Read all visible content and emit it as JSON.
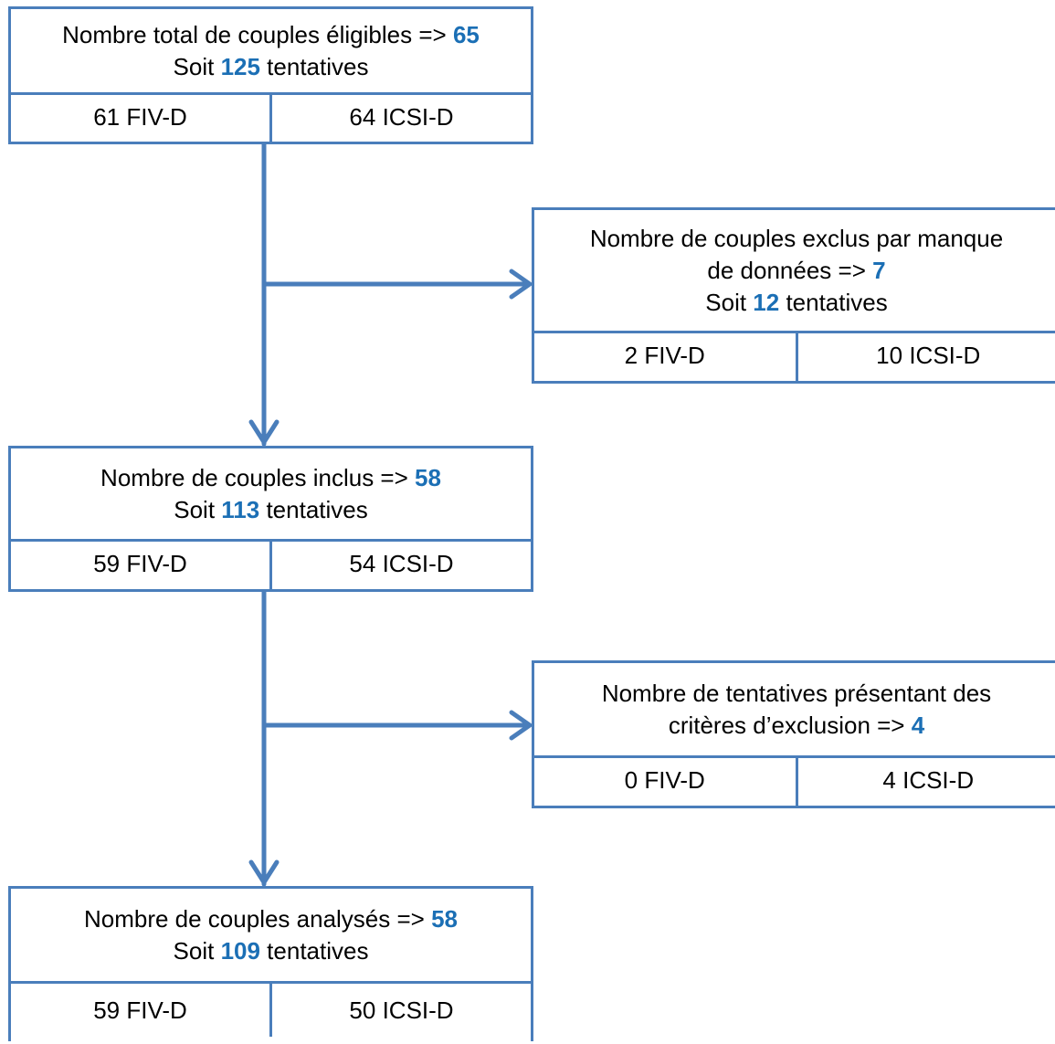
{
  "steps": [
    {
      "line1_prefix": "Nombre total de couples éligibles => ",
      "line1_value": "65",
      "line2_prefix": "Soit ",
      "line2_value": "125",
      "line2_suffix": " tentatives",
      "left": "61 FIV-D",
      "right": "64 ICSI-D"
    },
    {
      "line1_prefix": "Nombre de couples exclus par manque",
      "line2_prefix": "de données => ",
      "line2_value": "7",
      "line3_prefix": "Soit ",
      "line3_value": "12",
      "line3_suffix": " tentatives",
      "left": "2 FIV-D",
      "right": "10 ICSI-D"
    },
    {
      "line1_prefix": "Nombre de couples inclus => ",
      "line1_value": "58",
      "line2_prefix": "Soit ",
      "line2_value": "113",
      "line2_suffix": " tentatives",
      "left": "59 FIV-D",
      "right": "54 ICSI-D"
    },
    {
      "line1_prefix": "Nombre de tentatives présentant des",
      "line2_prefix": "critères d’exclusion => ",
      "line2_value": "4",
      "left": "0 FIV-D",
      "right": "4 ICSI-D"
    },
    {
      "line1_prefix": "Nombre de couples analysés => ",
      "line1_value": "58",
      "line2_prefix": "Soit ",
      "line2_value": "109",
      "line2_suffix": " tentatives",
      "left": "59 FIV-D",
      "right": "50 ICSI-D"
    }
  ],
  "colors": {
    "line": "#4a7ebb",
    "highlight": "#1b6fb5"
  }
}
